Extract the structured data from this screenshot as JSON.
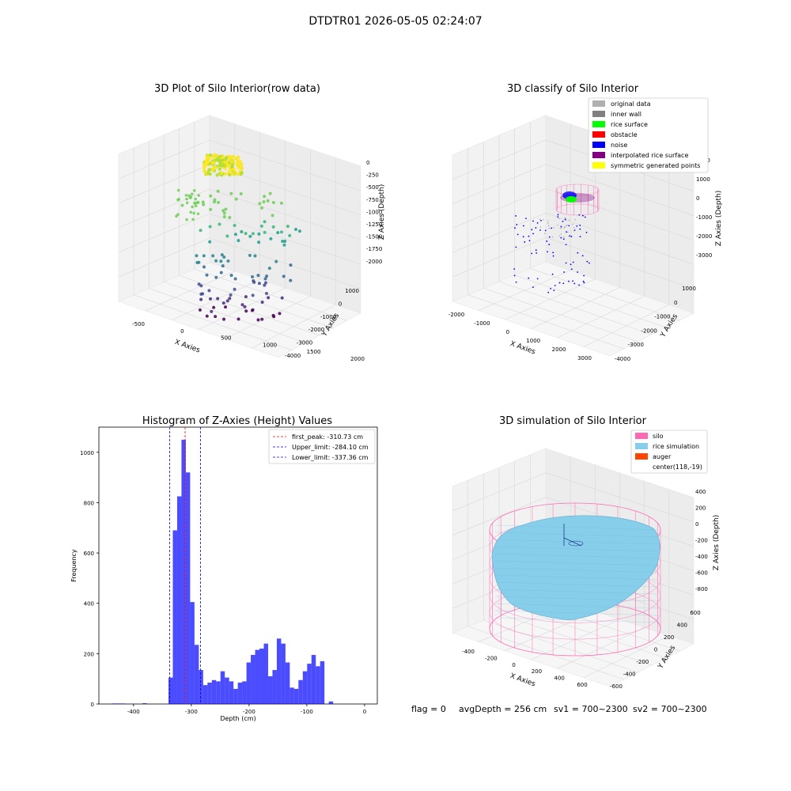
{
  "suptitle": "DTDTR01 2026-05-05 02:24:07",
  "chart_data": [
    {
      "type": "scatter",
      "title": "3D Plot of Silo Interior(row data)",
      "xlabel": "X Axies",
      "ylabel": "Y Axies",
      "zlabel": "Z Axies (Depth)",
      "xticks": [
        -500,
        0,
        500,
        1000,
        1500,
        2000
      ],
      "yticks": [
        1000,
        0,
        -1000,
        -2000,
        -3000,
        -4000
      ],
      "zticks": [
        0,
        -250,
        -500,
        -750,
        -1000,
        -1250,
        -1500,
        -1750,
        -2000
      ],
      "zlim": [
        -2250,
        150
      ],
      "colormap": [
        "#fde725",
        "#b5de2b",
        "#6ece58",
        "#35b779",
        "#1f9e89",
        "#26828e",
        "#31688e",
        "#3e4989",
        "#482878",
        "#440154"
      ],
      "grid": true
    },
    {
      "type": "scatter",
      "title": "3D classify of Silo Interior",
      "xlabel": "X Axies",
      "ylabel": "Y Axies",
      "zlabel": "Z Axies (Depth)",
      "xticks": [
        -2000,
        -1000,
        0,
        1000,
        2000,
        3000
      ],
      "yticks": [
        1000,
        0,
        -1000,
        -2000,
        -3000,
        -4000
      ],
      "zticks": [
        2000,
        1000,
        0,
        -1000,
        -2000,
        -3000
      ],
      "legend_position": "top-right",
      "legend": [
        {
          "label": "original data",
          "color": "#b0b0b0"
        },
        {
          "label": "inner wall",
          "color": "#808080"
        },
        {
          "label": "rice surface",
          "color": "#00ff00"
        },
        {
          "label": "obstacle",
          "color": "#ff0000"
        },
        {
          "label": "noise",
          "color": "#0000ff"
        },
        {
          "label": "interpolated rice surface",
          "color": "#800080"
        },
        {
          "label": "symmetric generated points",
          "color": "#ffff00"
        }
      ],
      "grid": true
    },
    {
      "type": "bar",
      "title": "Histogram of Z-Axies (Height) Values",
      "xlabel": "Depth (cm)",
      "ylabel": "Frequency",
      "xlim": [
        -460,
        22
      ],
      "ylim": [
        0,
        1100
      ],
      "xticks": [
        -400,
        -300,
        -200,
        -100,
        0
      ],
      "yticks": [
        0,
        200,
        400,
        600,
        800,
        1000
      ],
      "bin_width": 7.5,
      "bin_start": -437,
      "values": [
        2,
        2,
        2,
        0,
        1,
        0,
        0,
        3,
        0,
        0,
        0,
        0,
        0,
        105,
        690,
        825,
        1050,
        920,
        405,
        235,
        135,
        75,
        85,
        95,
        90,
        130,
        105,
        90,
        60,
        85,
        90,
        165,
        195,
        215,
        220,
        240,
        110,
        135,
        260,
        240,
        165,
        65,
        60,
        95,
        130,
        160,
        195,
        150,
        170,
        0,
        10
      ],
      "bar_color": "#0000ff",
      "lines": [
        {
          "label": "first_peak: -310.73 cm",
          "x": -310.73,
          "color": "#ff0000"
        },
        {
          "label": "Upper_limit: -284.10 cm",
          "x": -284.1,
          "color": "#0000ff"
        },
        {
          "label": "Lower_limit: -337.36 cm",
          "x": -337.36,
          "color": "#0000ff"
        }
      ],
      "legend_position": "top-right"
    },
    {
      "type": "surface",
      "title": "3D simulation of Silo Interior",
      "xlabel": "X Axies",
      "ylabel": "Y Axies",
      "zlabel": "Z Axies (Depth)",
      "xticks": [
        -400,
        -200,
        0,
        200,
        400,
        600
      ],
      "yticks": [
        600,
        400,
        200,
        0,
        -200,
        -400,
        -600
      ],
      "zticks": [
        400,
        200,
        0,
        -200,
        -400,
        -600,
        -800
      ],
      "legend_position": "top-right",
      "legend": [
        {
          "label": "silo",
          "color": "#ff69b4"
        },
        {
          "label": "rice simulation",
          "color": "#87ceeb"
        },
        {
          "label": "auger",
          "color": "#ff4500"
        },
        {
          "label": "center(118,-19)",
          "color": ""
        }
      ],
      "grid": true
    }
  ],
  "footer": {
    "flag": "flag = 0",
    "avg": "avgDepth = 256 cm",
    "sv1": "sv1 = 700~2300",
    "sv2": "sv2 = 700~2300"
  }
}
